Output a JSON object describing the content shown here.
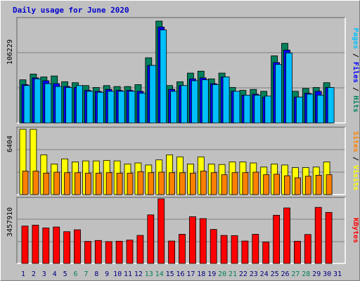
{
  "chart_data": {
    "type": "bar",
    "title": "Daily usage for June 2020",
    "days": [
      "1",
      "2",
      "3",
      "4",
      "5",
      "6",
      "7",
      "8",
      "9",
      "10",
      "11",
      "12",
      "13",
      "14",
      "15",
      "16",
      "17",
      "18",
      "19",
      "20",
      "21",
      "22",
      "23",
      "24",
      "25",
      "26",
      "27",
      "28",
      "29",
      "30",
      "31"
    ],
    "weekend_days": [
      "6",
      "7",
      "13",
      "14",
      "20",
      "21",
      "27",
      "28"
    ],
    "weekend_color": "#00805c",
    "weekday_color": "#000080",
    "panels": [
      {
        "name": "hits-files-pages",
        "max_label": "106229",
        "max_value": 106229,
        "legend": [
          {
            "text": "Hits",
            "color": "#00805c"
          },
          {
            "text": " / ",
            "color": "#000000"
          },
          {
            "text": "Files",
            "color": "#0000ff"
          },
          {
            "text": " / ",
            "color": "#000000"
          },
          {
            "text": "Pages",
            "color": "#00bfff"
          }
        ],
        "series": [
          {
            "name": "Hits",
            "color": "#00805c",
            "values": [
              45000,
              51000,
              48000,
              49000,
              43000,
              42000,
              39000,
              37000,
              39000,
              38000,
              38000,
              40000,
              68000,
              106229,
              39000,
              43000,
              52000,
              54000,
              46000,
              52000,
              37000,
              34000,
              35000,
              33000,
              70000,
              83000,
              33000,
              36000,
              37000,
              42000
            ]
          },
          {
            "name": "Files",
            "color": "#0000ff",
            "values": [
              40000,
              47000,
              44000,
              41000,
              38000,
              37000,
              34000,
              33000,
              35000,
              34000,
              34000,
              33000,
              60000,
              100000,
              35000,
              39000,
              46000,
              47000,
              41000,
              48000,
              33000,
              29000,
              30000,
              27000,
              63000,
              76000,
              27000,
              31000,
              33000,
              37000
            ]
          },
          {
            "name": "Pages",
            "color": "#00bfff",
            "values": [
              39000,
              46000,
              41000,
              38000,
              37000,
              39000,
              33000,
              32000,
              33000,
              33000,
              33000,
              31000,
              60000,
              97000,
              33000,
              39000,
              44000,
              45000,
              40000,
              48000,
              33000,
              29000,
              29000,
              28000,
              61000,
              73000,
              27000,
              30000,
              29000,
              37000
            ]
          }
        ]
      },
      {
        "name": "visits-sites",
        "max_label": "6404",
        "max_value": 6404,
        "legend": [
          {
            "text": "Visits",
            "color": "#ffff00"
          },
          {
            "text": " / ",
            "color": "#000000"
          },
          {
            "text": "Sites",
            "color": "#ff8000"
          }
        ],
        "series": [
          {
            "name": "Visits",
            "color": "#ffff00",
            "values": [
              6404,
              6400,
              3900,
              3000,
              3500,
              3200,
              3300,
              3300,
              3350,
              3300,
              3000,
              3100,
              2900,
              3400,
              3900,
              3700,
              3000,
              3700,
              3000,
              2950,
              3200,
              3200,
              3100,
              2700,
              3000,
              2900,
              2650,
              2650,
              2700,
              3200
            ]
          },
          {
            "name": "Sites",
            "color": "#ff8000",
            "values": [
              2300,
              2300,
              2100,
              2200,
              2150,
              2150,
              2100,
              2100,
              2150,
              2100,
              2100,
              2250,
              2150,
              2200,
              2150,
              2150,
              2100,
              2300,
              2150,
              1950,
              2150,
              2150,
              2200,
              1950,
              2000,
              1850,
              1650,
              1800,
              1900,
              1950
            ]
          }
        ]
      },
      {
        "name": "kbytes",
        "max_label": "3457910",
        "max_value": 3457910,
        "legend": [
          {
            "text": "KBytes",
            "color": "#ff0000"
          }
        ],
        "series": [
          {
            "name": "KBytes",
            "color": "#ff0000",
            "values": [
              2000000,
              2050000,
              1900000,
              1950000,
              1700000,
              1800000,
              1180000,
              1230000,
              1170000,
              1190000,
              1250000,
              1500000,
              2600000,
              3457910,
              1200000,
              1560000,
              2500000,
              2400000,
              1820000,
              1500000,
              1490000,
              1200000,
              1560000,
              1140000,
              2580000,
              2970000,
              1190000,
              1550000,
              3000000,
              2730000
            ]
          }
        ]
      }
    ]
  }
}
